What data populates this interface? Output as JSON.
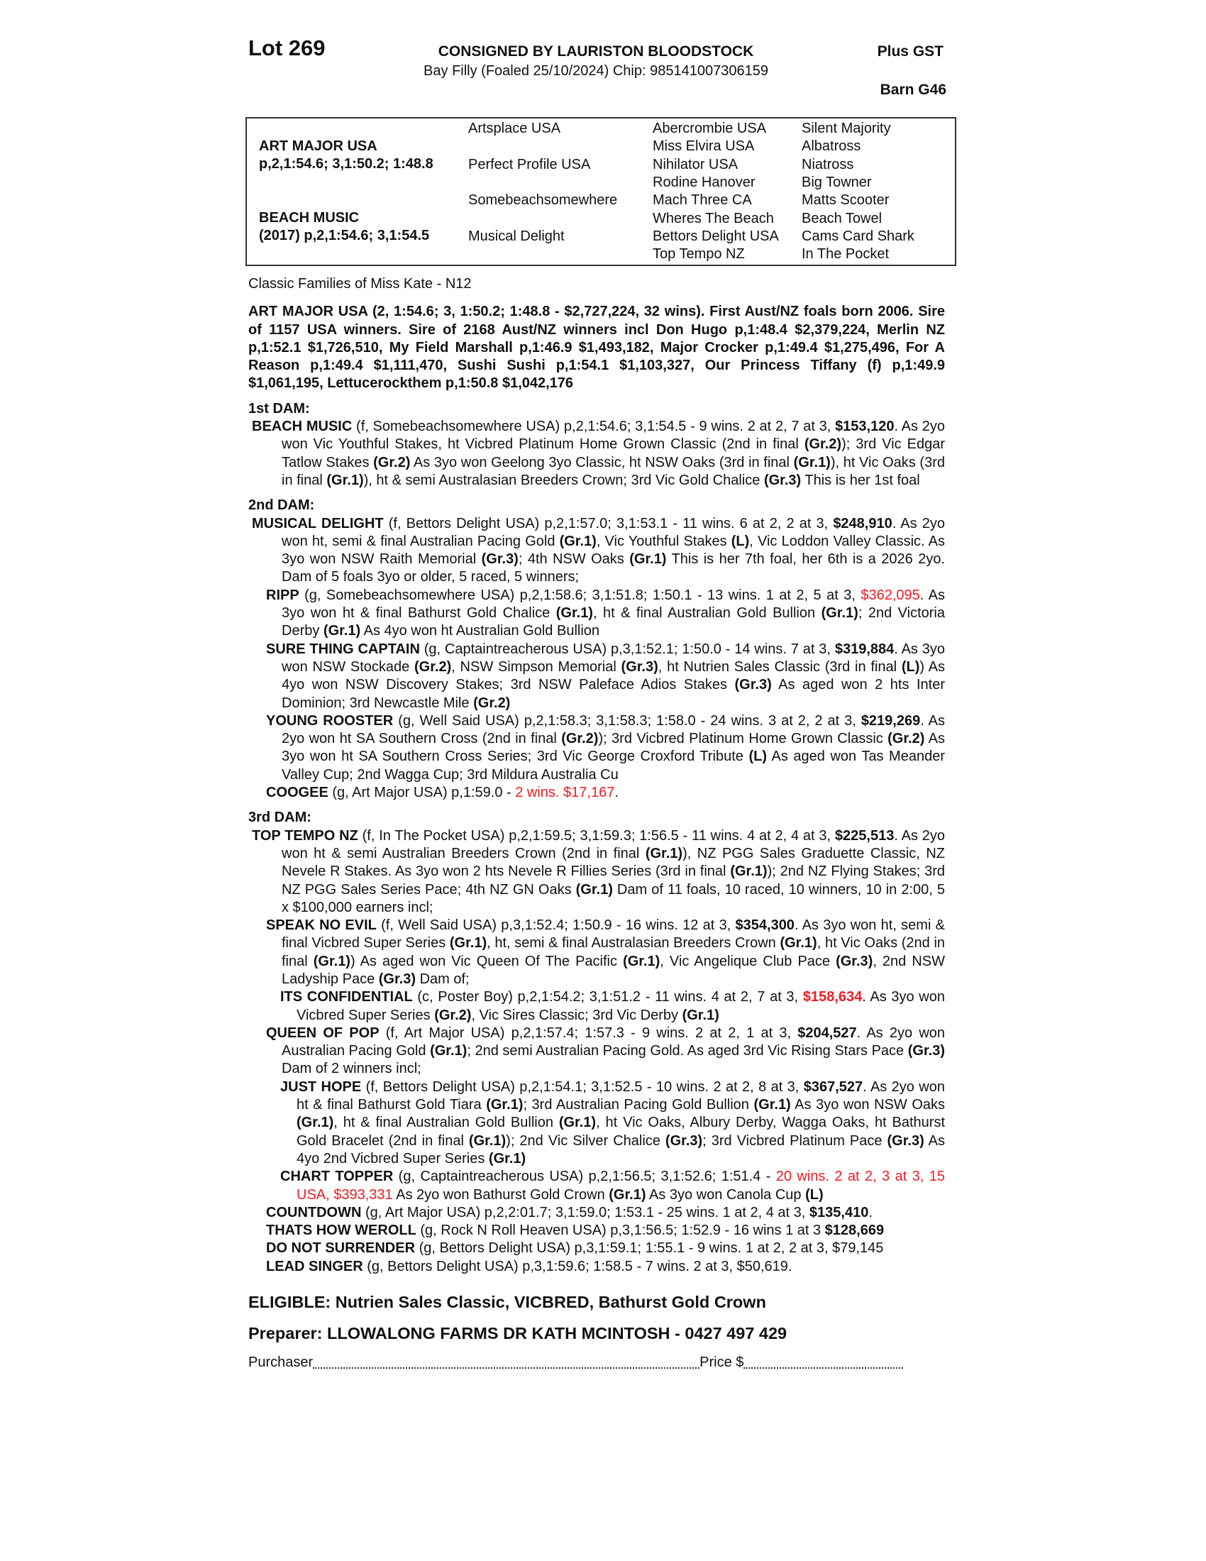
{
  "header": {
    "lot": "Lot 269",
    "consigned": "CONSIGNED BY LAURISTON BLOODSTOCK",
    "description": "Bay Filly (Foaled 25/10/2024) Chip: 985141007306159",
    "gst": "Plus GST",
    "barn": "Barn G46"
  },
  "pedigree": {
    "sire": "ART MAJOR USA",
    "sire_record": "p,2,1:54.6; 3,1:50.2; 1:48.8",
    "dam": "BEACH MUSIC",
    "dam_record": "(2017) p,2,1:54.6; 3,1:54.5",
    "gen2": [
      "Artsplace USA",
      "Perfect Profile USA",
      "Somebeachsomewhere",
      "Musical Delight"
    ],
    "gen3": [
      "Abercrombie USA",
      "Miss Elvira USA",
      "Nihilator USA",
      "Rodine Hanover",
      "Mach Three CA",
      "Wheres The Beach",
      "Bettors Delight USA",
      "Top Tempo NZ"
    ],
    "gen4": [
      "Silent Majority",
      "Albatross",
      "Niatross",
      "Big Towner",
      "Matts Scooter",
      "Beach Towel",
      "Cams Card Shark",
      "In The Pocket"
    ]
  },
  "family": "Classic Families of Miss Kate - N12",
  "sire_para": "ART MAJOR USA (2, 1:54.6; 3, 1:50.2; 1:48.8 - $2,727,224, 32 wins). First Aust/NZ foals born 2006. Sire of 1157 USA winners. Sire of 2168 Aust/NZ winners incl Don Hugo p,1:48.4 $2,379,224, Merlin NZ p,1:52.1 $1,726,510, My Field Marshall p,1:46.9 $1,493,182, Major Crocker p,1:49.4 $1,275,496, For A Reason p,1:49.4 $1,111,470, Sushi Sushi p,1:54.1 $1,103,327, Our Princess Tiffany (f) p,1:49.9 $1,061,195, Lettucerockthem p,1:50.8 $1,042,176",
  "colors": {
    "highlight": "#ee1c24"
  },
  "dams": [
    {
      "heading": "1st DAM:",
      "entries": [
        {
          "level": 0,
          "segments": [
            [
              "BEACH MUSIC",
              "b"
            ],
            [
              " (f, Somebeachsomewhere USA) p,2,1:54.6; 3,1:54.5 - 9 wins. 2 at 2, 7 at 3, ",
              ""
            ],
            [
              "$153,120",
              "b"
            ],
            [
              ". As 2yo won Vic Youthful Stakes, ht Vicbred Platinum Home Grown Classic (2nd in final ",
              ""
            ],
            [
              "(Gr.2)",
              "b"
            ],
            [
              "); 3rd Vic Edgar Tatlow Stakes ",
              ""
            ],
            [
              "(Gr.2)",
              "b"
            ],
            [
              " As 3yo won Geelong 3yo Classic, ht NSW Oaks (3rd in final ",
              ""
            ],
            [
              "(Gr.1)",
              "b"
            ],
            [
              "), ht Vic Oaks (3rd in final ",
              ""
            ],
            [
              "(Gr.1)",
              "b"
            ],
            [
              "), ht & semi Australasian Breeders Crown; 3rd Vic Gold Chalice ",
              ""
            ],
            [
              "(Gr.3)",
              "b"
            ],
            [
              " This is her 1st foal",
              ""
            ]
          ]
        }
      ]
    },
    {
      "heading": "2nd DAM:",
      "entries": [
        {
          "level": 0,
          "segments": [
            [
              "MUSICAL DELIGHT",
              "b"
            ],
            [
              " (f, Bettors Delight USA) p,2,1:57.0; 3,1:53.1 - 11 wins. 6 at 2, 2 at 3, ",
              ""
            ],
            [
              "$248,910",
              "b"
            ],
            [
              ". As 2yo won ht, semi & final Australian Pacing Gold ",
              ""
            ],
            [
              "(Gr.1)",
              "b"
            ],
            [
              ", Vic Youthful Stakes ",
              ""
            ],
            [
              "(L)",
              "b"
            ],
            [
              ", Vic Loddon Valley Classic. As 3yo won NSW Raith Memorial ",
              ""
            ],
            [
              "(Gr.3)",
              "b"
            ],
            [
              "; 4th NSW Oaks ",
              ""
            ],
            [
              "(Gr.1)",
              "b"
            ],
            [
              " This is her 7th foal, her 6th is a 2026 2yo. Dam of 5 foals 3yo or older, 5 raced, 5 winners;",
              ""
            ]
          ]
        },
        {
          "level": 1,
          "segments": [
            [
              "RIPP",
              "b"
            ],
            [
              " (g, Somebeachsomewhere USA) p,2,1:58.6; 3,1:51.8; 1:50.1 - 13 wins. 1 at 2, 5 at 3, ",
              ""
            ],
            [
              "$362,095",
              "r"
            ],
            [
              ". As 3yo won ht & final Bathurst Gold Chalice ",
              ""
            ],
            [
              "(Gr.1)",
              "b"
            ],
            [
              ", ht & final Australian Gold Bullion ",
              ""
            ],
            [
              "(Gr.1)",
              "b"
            ],
            [
              "; 2nd Victoria Derby ",
              ""
            ],
            [
              "(Gr.1)",
              "b"
            ],
            [
              " As 4yo won ht Australian Gold Bullion",
              ""
            ]
          ]
        },
        {
          "level": 1,
          "segments": [
            [
              "SURE THING CAPTAIN",
              "b"
            ],
            [
              " (g, Captaintreacherous USA) p,3,1:52.1; 1:50.0 - 14 wins. 7 at 3, ",
              ""
            ],
            [
              "$319,884",
              "b"
            ],
            [
              ". As 3yo won NSW Stockade ",
              ""
            ],
            [
              "(Gr.2)",
              "b"
            ],
            [
              ", NSW Simpson Memorial ",
              ""
            ],
            [
              "(Gr.3)",
              "b"
            ],
            [
              ", ht Nutrien Sales Classic (3rd in final ",
              ""
            ],
            [
              "(L)",
              "b"
            ],
            [
              ") As 4yo won NSW Discovery Stakes; 3rd NSW Paleface Adios Stakes ",
              ""
            ],
            [
              "(Gr.3)",
              "b"
            ],
            [
              " As aged won 2 hts Inter Dominion; 3rd Newcastle Mile ",
              ""
            ],
            [
              "(Gr.2)",
              "b"
            ]
          ]
        },
        {
          "level": 1,
          "segments": [
            [
              "YOUNG ROOSTER",
              "b"
            ],
            [
              " (g, Well Said USA) p,2,1:58.3; 3,1:58.3; 1:58.0 - 24 wins. 3 at 2, 2 at 3, ",
              ""
            ],
            [
              "$219,269",
              "b"
            ],
            [
              ". As 2yo won ht SA Southern Cross (2nd in final ",
              ""
            ],
            [
              "(Gr.2)",
              "b"
            ],
            [
              "); 3rd Vicbred Platinum Home Grown Classic ",
              ""
            ],
            [
              "(Gr.2)",
              "b"
            ],
            [
              " As 3yo won ht SA Southern Cross Series; 3rd Vic George Croxford Tribute ",
              ""
            ],
            [
              "(L)",
              "b"
            ],
            [
              " As aged won Tas Meander Valley Cup; 2nd Wagga Cup; 3rd Mildura Australia Cu",
              ""
            ]
          ]
        },
        {
          "level": 1,
          "segments": [
            [
              "COOGEE",
              "b"
            ],
            [
              " (g, Art Major USA) p,1:59.0 - ",
              ""
            ],
            [
              "2 wins. $17,167",
              "r"
            ],
            [
              ".",
              ""
            ]
          ]
        }
      ]
    },
    {
      "heading": "3rd DAM:",
      "entries": [
        {
          "level": 0,
          "segments": [
            [
              "TOP TEMPO NZ",
              "b"
            ],
            [
              " (f, In The Pocket USA) p,2,1:59.5; 3,1:59.3; 1:56.5 - 11 wins. 4 at 2, 4 at 3, ",
              ""
            ],
            [
              "$225,513",
              "b"
            ],
            [
              ". As 2yo won ht & semi Australian Breeders Crown (2nd in final ",
              ""
            ],
            [
              "(Gr.1)",
              "b"
            ],
            [
              "), NZ PGG Sales Graduette Classic, NZ Nevele R Stakes. As 3yo won 2 hts Nevele R Fillies Series (3rd in final ",
              ""
            ],
            [
              "(Gr.1)",
              "b"
            ],
            [
              "); 2nd NZ Flying Stakes; 3rd NZ PGG Sales Series Pace; 4th NZ GN Oaks ",
              ""
            ],
            [
              "(Gr.1)",
              "b"
            ],
            [
              " Dam of 11 foals, 10 raced, 10 winners, 10 in 2:00, 5 x $100,000 earners incl;",
              ""
            ]
          ]
        },
        {
          "level": 1,
          "segments": [
            [
              "SPEAK NO EVIL",
              "b"
            ],
            [
              " (f, Well Said USA) p,3,1:52.4; 1:50.9 - 16 wins. 12 at 3, ",
              ""
            ],
            [
              "$354,300",
              "b"
            ],
            [
              ". As 3yo won ht, semi & final Vicbred Super Series ",
              ""
            ],
            [
              "(Gr.1)",
              "b"
            ],
            [
              ", ht, semi & final Australasian Breeders Crown ",
              ""
            ],
            [
              "(Gr.1)",
              "b"
            ],
            [
              ", ht Vic Oaks (2nd in final ",
              ""
            ],
            [
              "(Gr.1)",
              "b"
            ],
            [
              ") As aged won Vic Queen Of The Pacific ",
              ""
            ],
            [
              "(Gr.1)",
              "b"
            ],
            [
              ", Vic Angelique Club Pace ",
              ""
            ],
            [
              "(Gr.3)",
              "b"
            ],
            [
              ", 2nd NSW Ladyship Pace ",
              ""
            ],
            [
              "(Gr.3)",
              "b"
            ],
            [
              " Dam of;",
              ""
            ]
          ]
        },
        {
          "level": 2,
          "segments": [
            [
              "ITS CONFIDENTIAL",
              "b"
            ],
            [
              " (c, Poster Boy) p,2,1:54.2; 3,1:51.2 - 11 wins. 4 at 2, 7 at 3, ",
              ""
            ],
            [
              "$158,634",
              "b r"
            ],
            [
              ". As 3yo won Vicbred Super Series ",
              ""
            ],
            [
              "(Gr.2)",
              "b"
            ],
            [
              ", Vic Sires Classic; 3rd Vic Derby ",
              ""
            ],
            [
              "(Gr.1)",
              "b"
            ]
          ]
        },
        {
          "level": 1,
          "segments": [
            [
              "QUEEN OF POP",
              "b"
            ],
            [
              " (f, Art Major USA) p,2,1:57.4; 1:57.3 - 9 wins. 2 at 2, 1 at 3, ",
              ""
            ],
            [
              "$204,527",
              "b"
            ],
            [
              ". As 2yo won Australian Pacing Gold ",
              ""
            ],
            [
              "(Gr.1)",
              "b"
            ],
            [
              "; 2nd semi Australian Pacing Gold. As aged 3rd Vic Rising Stars Pace ",
              ""
            ],
            [
              "(Gr.3)",
              "b"
            ],
            [
              " Dam of 2 winners incl;",
              ""
            ]
          ]
        },
        {
          "level": 2,
          "segments": [
            [
              "JUST HOPE",
              "b"
            ],
            [
              " (f, Bettors Delight USA) p,2,1:54.1; 3,1:52.5 - 10 wins. 2 at 2, 8 at 3, ",
              ""
            ],
            [
              "$367,527",
              "b"
            ],
            [
              ". As 2yo won ht & final Bathurst Gold Tiara ",
              ""
            ],
            [
              "(Gr.1)",
              "b"
            ],
            [
              "; 3rd Australian Pacing Gold Bullion ",
              ""
            ],
            [
              "(Gr.1)",
              "b"
            ],
            [
              " As 3yo won NSW Oaks ",
              ""
            ],
            [
              "(Gr.1)",
              "b"
            ],
            [
              ", ht & final Australian Gold Bullion ",
              ""
            ],
            [
              "(Gr.1)",
              "b"
            ],
            [
              ", ht Vic Oaks, Albury Derby, Wagga Oaks, ht Bathurst Gold Bracelet (2nd in final ",
              ""
            ],
            [
              "(Gr.1)",
              "b"
            ],
            [
              "); 2nd Vic Silver Chalice ",
              ""
            ],
            [
              "(Gr.3)",
              "b"
            ],
            [
              "; 3rd Vicbred Platinum Pace ",
              ""
            ],
            [
              "(Gr.3)",
              "b"
            ],
            [
              " As 4yo 2nd Vicbred Super Series ",
              ""
            ],
            [
              "(Gr.1)",
              "b"
            ]
          ]
        },
        {
          "level": 2,
          "segments": [
            [
              "CHART TOPPER",
              "b"
            ],
            [
              " (g, Captaintreacherous USA) p,2,1:56.5; 3,1:52.6; 1:51.4 - ",
              ""
            ],
            [
              "20 wins. 2 at 2, 3 at 3, 15 USA, $393,331",
              "r"
            ],
            [
              " As 2yo won Bathurst Gold Crown ",
              ""
            ],
            [
              "(Gr.1)",
              "b"
            ],
            [
              " As 3yo won Canola Cup ",
              ""
            ],
            [
              "(L)",
              "b"
            ]
          ]
        },
        {
          "level": 1,
          "segments": [
            [
              "COUNTDOWN",
              "b"
            ],
            [
              " (g, Art Major USA) p,2,2:01.7; 3,1:59.0; 1:53.1 - 25 wins. 1 at 2, 4 at 3, ",
              ""
            ],
            [
              "$135,410",
              "b"
            ],
            [
              ".",
              ""
            ]
          ]
        },
        {
          "level": 1,
          "segments": [
            [
              "THATS HOW WEROLL",
              "b"
            ],
            [
              " (g, Rock N Roll Heaven USA) p,3,1:56.5; 1:52.9 - 16 wins 1 at 3 ",
              ""
            ],
            [
              "$128,669",
              "b"
            ]
          ]
        },
        {
          "level": 1,
          "segments": [
            [
              "DO NOT SURRENDER",
              "b"
            ],
            [
              " (g, Bettors Delight USA) p,3,1:59.1; 1:55.1 - 9 wins. 1 at 2, 2 at 3, $79,145",
              ""
            ]
          ]
        },
        {
          "level": 1,
          "segments": [
            [
              "LEAD SINGER",
              "b"
            ],
            [
              " (g, Bettors Delight USA) p,3,1:59.6; 1:58.5 - 7 wins. 2 at 3, $50,619.",
              ""
            ]
          ]
        }
      ]
    }
  ],
  "eligible": "ELIGIBLE: Nutrien Sales Classic, VICBRED, Bathurst Gold Crown",
  "preparer": "Preparer: LLOWALONG FARMS DR KATH MCINTOSH - 0427 497 429",
  "purchaser_label": "Purchaser",
  "price_label": "Price $"
}
